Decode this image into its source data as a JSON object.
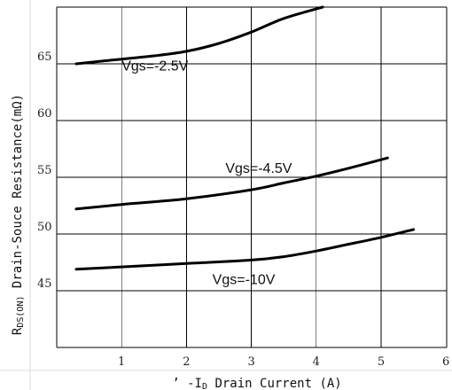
{
  "chart_data": {
    "type": "line",
    "title": "",
    "xlabel": "’ -I",
    "xlabel_sub": "D",
    "xlabel_rest": " Drain Current (A)",
    "ylabel": "R",
    "ylabel_sub": "DS(ON)",
    "ylabel_rest": " Drain-Souce Resistance(mΩ)",
    "xlim": [
      0,
      6
    ],
    "ylim": [
      40,
      70
    ],
    "x_ticks": [
      "1",
      "2",
      "3",
      "4",
      "5",
      "6"
    ],
    "y_ticks": [
      "45",
      "50",
      "55",
      "60",
      "65"
    ],
    "grid": true,
    "series": [
      {
        "name": "Vgs=-2.5V",
        "x": [
          0.3,
          0.8,
          1.5,
          2.0,
          2.5,
          3.0,
          3.5,
          4.1
        ],
        "y": [
          65.0,
          65.3,
          65.7,
          66.1,
          66.8,
          67.8,
          69.0,
          70.0
        ],
        "label_at": [
          1.0,
          64.4
        ]
      },
      {
        "name": "Vgs=-4.5V",
        "x": [
          0.3,
          1.0,
          2.0,
          3.0,
          3.5,
          4.0,
          4.5,
          5.1
        ],
        "y": [
          52.2,
          52.6,
          53.1,
          53.9,
          54.5,
          55.1,
          55.8,
          56.7
        ],
        "label_at": [
          2.6,
          55.4
        ]
      },
      {
        "name": "Vgs=-10V",
        "x": [
          0.3,
          1.0,
          2.0,
          3.0,
          3.5,
          4.0,
          4.5,
          5.0,
          5.5
        ],
        "y": [
          46.9,
          47.1,
          47.4,
          47.7,
          48.0,
          48.5,
          49.1,
          49.7,
          50.4
        ],
        "label_at": [
          2.4,
          45.6
        ]
      }
    ]
  }
}
